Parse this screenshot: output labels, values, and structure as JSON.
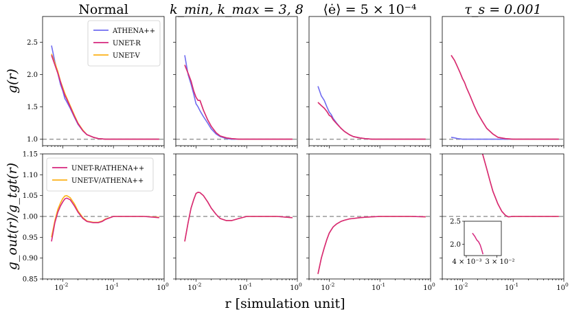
{
  "figure": {
    "xlabel": "r [simulation unit]",
    "ylabel_top": "g(r)",
    "ylabel_bottom": "g_out(r)/g_tgt(r)"
  },
  "colors": {
    "ATHENA++": "#6f6bf0",
    "UNET-R": "#d6267d",
    "UNET-V": "#fbb116",
    "reference": "#999999"
  },
  "chart_data": [
    {
      "type": "line",
      "panel": "top-1",
      "title": "Normal",
      "xscale": "log",
      "xlim": [
        0.004,
        1.0
      ],
      "ylim": [
        0.9,
        2.9
      ],
      "yticks": [
        1.0,
        1.5,
        2.0,
        2.5
      ],
      "xticks_labeled": false,
      "reference_line": 1.0,
      "legend": "top-right",
      "series": [
        {
          "name": "ATHENA++",
          "x": [
            0.006,
            0.007,
            0.008,
            0.009,
            0.01,
            0.011,
            0.012,
            0.014,
            0.017,
            0.02,
            0.025,
            0.03,
            0.04,
            0.05,
            0.07,
            0.1,
            0.2,
            0.4,
            0.8
          ],
          "y": [
            2.45,
            2.2,
            2.02,
            1.85,
            1.75,
            1.63,
            1.58,
            1.48,
            1.34,
            1.23,
            1.13,
            1.07,
            1.03,
            1.01,
            1.0,
            1.0,
            1.0,
            1.0,
            1.0
          ]
        },
        {
          "name": "UNET-R",
          "x": [
            0.006,
            0.007,
            0.008,
            0.009,
            0.01,
            0.011,
            0.012,
            0.014,
            0.017,
            0.02,
            0.025,
            0.03,
            0.04,
            0.05,
            0.07,
            0.1,
            0.2,
            0.4,
            0.8
          ],
          "y": [
            2.3,
            2.15,
            2.02,
            1.89,
            1.77,
            1.68,
            1.62,
            1.5,
            1.35,
            1.24,
            1.13,
            1.07,
            1.03,
            1.01,
            1.0,
            1.0,
            1.0,
            1.0,
            1.0
          ]
        },
        {
          "name": "UNET-V",
          "x": [
            0.006,
            0.007,
            0.008,
            0.009,
            0.01,
            0.011,
            0.012,
            0.014,
            0.017,
            0.02,
            0.025,
            0.03,
            0.04,
            0.05,
            0.07,
            0.1,
            0.2,
            0.4,
            0.8
          ],
          "y": [
            2.32,
            2.18,
            2.05,
            1.9,
            1.8,
            1.71,
            1.64,
            1.52,
            1.37,
            1.25,
            1.14,
            1.07,
            1.03,
            1.01,
            1.0,
            1.0,
            1.0,
            1.0,
            1.0
          ]
        }
      ]
    },
    {
      "type": "line",
      "panel": "top-2",
      "title": "k_min, k_max = 3, 8",
      "xscale": "log",
      "xlim": [
        0.004,
        1.0
      ],
      "ylim": [
        0.9,
        2.9
      ],
      "yticks": [
        1.0,
        1.5,
        2.0,
        2.5
      ],
      "xticks_labeled": false,
      "reference_line": 1.0,
      "series": [
        {
          "name": "ATHENA++",
          "x": [
            0.006,
            0.007,
            0.008,
            0.009,
            0.01,
            0.011,
            0.012,
            0.014,
            0.017,
            0.02,
            0.025,
            0.03,
            0.04,
            0.05,
            0.07,
            0.1,
            0.2,
            0.4,
            0.8
          ],
          "y": [
            2.3,
            2.0,
            1.85,
            1.7,
            1.55,
            1.5,
            1.44,
            1.35,
            1.25,
            1.16,
            1.08,
            1.04,
            1.01,
            1.0,
            1.0,
            1.0,
            1.0,
            1.0,
            1.0
          ]
        },
        {
          "name": "UNET-R",
          "x": [
            0.006,
            0.007,
            0.008,
            0.009,
            0.01,
            0.011,
            0.012,
            0.014,
            0.017,
            0.02,
            0.025,
            0.03,
            0.04,
            0.05,
            0.07,
            0.1,
            0.2,
            0.4,
            0.8
          ],
          "y": [
            2.15,
            2.02,
            1.9,
            1.75,
            1.65,
            1.6,
            1.6,
            1.45,
            1.3,
            1.2,
            1.1,
            1.05,
            1.02,
            1.01,
            1.0,
            1.0,
            1.0,
            1.0,
            1.0
          ]
        },
        {
          "name": "UNET-V",
          "x": [
            0.006,
            0.007,
            0.008,
            0.009,
            0.01,
            0.011,
            0.012,
            0.014,
            0.017,
            0.02,
            0.025,
            0.03,
            0.04,
            0.05,
            0.07,
            0.1,
            0.2,
            0.4,
            0.8
          ],
          "y": [
            2.15,
            2.02,
            1.9,
            1.75,
            1.65,
            1.6,
            1.6,
            1.45,
            1.3,
            1.2,
            1.1,
            1.05,
            1.02,
            1.01,
            1.0,
            1.0,
            1.0,
            1.0,
            1.0
          ]
        }
      ]
    },
    {
      "type": "line",
      "panel": "top-3",
      "title": "⟨ė⟩ = 5 × 10⁻⁴",
      "xscale": "log",
      "xlim": [
        0.004,
        1.0
      ],
      "ylim": [
        0.9,
        2.9
      ],
      "yticks": [
        1.0,
        1.5,
        2.0,
        2.5
      ],
      "xticks_labeled": false,
      "reference_line": 1.0,
      "series": [
        {
          "name": "ATHENA++",
          "x": [
            0.006,
            0.007,
            0.008,
            0.009,
            0.01,
            0.011,
            0.012,
            0.014,
            0.017,
            0.02,
            0.025,
            0.03,
            0.04,
            0.05,
            0.07,
            0.1,
            0.2,
            0.4,
            0.8
          ],
          "y": [
            1.82,
            1.67,
            1.6,
            1.5,
            1.42,
            1.38,
            1.32,
            1.25,
            1.17,
            1.12,
            1.07,
            1.04,
            1.02,
            1.01,
            1.0,
            1.0,
            1.0,
            1.0,
            1.0
          ]
        },
        {
          "name": "UNET-R",
          "x": [
            0.006,
            0.007,
            0.008,
            0.009,
            0.01,
            0.011,
            0.012,
            0.014,
            0.017,
            0.02,
            0.025,
            0.03,
            0.04,
            0.05,
            0.07,
            0.1,
            0.2,
            0.4,
            0.8
          ],
          "y": [
            1.57,
            1.52,
            1.48,
            1.43,
            1.37,
            1.35,
            1.3,
            1.24,
            1.17,
            1.12,
            1.07,
            1.04,
            1.02,
            1.01,
            1.0,
            1.0,
            1.0,
            1.0,
            1.0
          ]
        },
        {
          "name": "UNET-V",
          "x": [
            0.006,
            0.007,
            0.008,
            0.009,
            0.01,
            0.011,
            0.012,
            0.014,
            0.017,
            0.02,
            0.025,
            0.03,
            0.04,
            0.05,
            0.07,
            0.1,
            0.2,
            0.4,
            0.8
          ],
          "y": [
            1.57,
            1.52,
            1.48,
            1.43,
            1.37,
            1.35,
            1.3,
            1.24,
            1.17,
            1.12,
            1.07,
            1.04,
            1.02,
            1.01,
            1.0,
            1.0,
            1.0,
            1.0,
            1.0
          ]
        }
      ]
    },
    {
      "type": "line",
      "panel": "top-4",
      "title": "τ_s = 0.001",
      "xscale": "log",
      "xlim": [
        0.004,
        1.0
      ],
      "ylim": [
        0.9,
        2.9
      ],
      "yticks": [
        1.0,
        1.5,
        2.0,
        2.5
      ],
      "xticks_labeled": false,
      "reference_line": 1.0,
      "series": [
        {
          "name": "ATHENA++",
          "x": [
            0.006,
            0.007,
            0.008,
            0.01,
            0.015,
            0.02,
            0.05,
            0.1,
            0.3,
            0.8
          ],
          "y": [
            1.03,
            1.02,
            1.01,
            1.0,
            1.0,
            1.0,
            1.0,
            1.0,
            1.0,
            1.0
          ]
        },
        {
          "name": "UNET-R",
          "x": [
            0.006,
            0.007,
            0.008,
            0.009,
            0.01,
            0.011,
            0.012,
            0.014,
            0.017,
            0.02,
            0.025,
            0.03,
            0.04,
            0.05,
            0.07,
            0.1,
            0.2,
            0.4,
            0.8
          ],
          "y": [
            2.3,
            2.22,
            2.12,
            2.03,
            1.94,
            1.88,
            1.8,
            1.68,
            1.52,
            1.4,
            1.27,
            1.17,
            1.08,
            1.03,
            1.01,
            1.0,
            1.0,
            1.0,
            1.0
          ]
        },
        {
          "name": "UNET-V",
          "x": [
            0.006,
            0.007,
            0.008,
            0.009,
            0.01,
            0.011,
            0.012,
            0.014,
            0.017,
            0.02,
            0.025,
            0.03,
            0.04,
            0.05,
            0.07,
            0.1,
            0.2,
            0.4,
            0.8
          ],
          "y": [
            2.3,
            2.22,
            2.12,
            2.03,
            1.94,
            1.88,
            1.8,
            1.68,
            1.52,
            1.4,
            1.27,
            1.17,
            1.08,
            1.03,
            1.01,
            1.0,
            1.0,
            1.0,
            1.0
          ]
        }
      ]
    },
    {
      "type": "line",
      "panel": "bottom-1",
      "xscale": "log",
      "xlim": [
        0.004,
        1.0
      ],
      "ylim": [
        0.85,
        1.15
      ],
      "yticks": [
        0.85,
        0.9,
        0.95,
        1.0,
        1.05,
        1.1,
        1.15
      ],
      "xticks_labeled": true,
      "reference_line": 1.0,
      "legend": "top-left",
      "series": [
        {
          "name": "UNET-R/ATHENA++",
          "x": [
            0.006,
            0.007,
            0.008,
            0.009,
            0.01,
            0.011,
            0.012,
            0.014,
            0.017,
            0.02,
            0.025,
            0.03,
            0.04,
            0.05,
            0.06,
            0.07,
            0.1,
            0.15,
            0.2,
            0.4,
            0.8
          ],
          "y": [
            0.94,
            0.985,
            1.01,
            1.025,
            1.035,
            1.042,
            1.044,
            1.04,
            1.025,
            1.01,
            0.995,
            0.988,
            0.985,
            0.985,
            0.988,
            0.993,
            1.0,
            1.0,
            1.0,
            1.0,
            0.997
          ]
        },
        {
          "name": "UNET-V/ATHENA++",
          "x": [
            0.006,
            0.007,
            0.008,
            0.009,
            0.01,
            0.011,
            0.012,
            0.014,
            0.017,
            0.02,
            0.025,
            0.03,
            0.04,
            0.05,
            0.06,
            0.07,
            0.1,
            0.15,
            0.2,
            0.4,
            0.8
          ],
          "y": [
            0.95,
            0.99,
            1.017,
            1.032,
            1.043,
            1.049,
            1.05,
            1.045,
            1.03,
            1.013,
            0.997,
            0.989,
            0.986,
            0.986,
            0.989,
            0.994,
            1.0,
            1.0,
            1.0,
            1.0,
            0.998
          ]
        }
      ]
    },
    {
      "type": "line",
      "panel": "bottom-2",
      "xscale": "log",
      "xlim": [
        0.004,
        1.0
      ],
      "ylim": [
        0.85,
        1.15
      ],
      "yticks": [
        0.85,
        0.9,
        0.95,
        1.0,
        1.05,
        1.1,
        1.15
      ],
      "xticks_labeled": true,
      "reference_line": 1.0,
      "series": [
        {
          "name": "UNET-R/ATHENA++",
          "x": [
            0.006,
            0.007,
            0.008,
            0.009,
            0.01,
            0.011,
            0.012,
            0.014,
            0.017,
            0.02,
            0.025,
            0.03,
            0.04,
            0.05,
            0.07,
            0.1,
            0.15,
            0.2,
            0.4,
            0.8
          ],
          "y": [
            0.94,
            0.985,
            1.02,
            1.04,
            1.055,
            1.058,
            1.057,
            1.05,
            1.035,
            1.02,
            1.005,
            0.995,
            0.99,
            0.99,
            0.995,
            1.0,
            1.0,
            1.0,
            1.0,
            0.997
          ]
        },
        {
          "name": "UNET-V/ATHENA++",
          "x": [
            0.006,
            0.007,
            0.008,
            0.009,
            0.01,
            0.011,
            0.012,
            0.014,
            0.017,
            0.02,
            0.025,
            0.03,
            0.04,
            0.05,
            0.07,
            0.1,
            0.15,
            0.2,
            0.4,
            0.8
          ],
          "y": [
            0.94,
            0.985,
            1.02,
            1.04,
            1.055,
            1.058,
            1.057,
            1.05,
            1.035,
            1.02,
            1.005,
            0.995,
            0.99,
            0.99,
            0.995,
            1.0,
            1.0,
            1.0,
            1.0,
            0.997
          ]
        }
      ]
    },
    {
      "type": "line",
      "panel": "bottom-3",
      "xscale": "log",
      "xlim": [
        0.004,
        1.0
      ],
      "ylim": [
        0.85,
        1.15
      ],
      "yticks": [
        0.85,
        0.9,
        0.95,
        1.0,
        1.05,
        1.1,
        1.15
      ],
      "xticks_labeled": true,
      "reference_line": 1.0,
      "series": [
        {
          "name": "UNET-R/ATHENA++",
          "x": [
            0.006,
            0.007,
            0.008,
            0.009,
            0.01,
            0.011,
            0.012,
            0.014,
            0.017,
            0.02,
            0.025,
            0.03,
            0.04,
            0.05,
            0.07,
            0.1,
            0.15,
            0.2,
            0.4,
            0.8
          ],
          "y": [
            0.862,
            0.9,
            0.925,
            0.945,
            0.96,
            0.968,
            0.975,
            0.982,
            0.988,
            0.991,
            0.994,
            0.995,
            0.997,
            0.998,
            0.999,
            1.0,
            1.0,
            1.0,
            1.0,
            0.999
          ]
        },
        {
          "name": "UNET-V/ATHENA++",
          "x": [
            0.006,
            0.007,
            0.008,
            0.009,
            0.01,
            0.011,
            0.012,
            0.014,
            0.017,
            0.02,
            0.025,
            0.03,
            0.04,
            0.05,
            0.07,
            0.1,
            0.15,
            0.2,
            0.4,
            0.8
          ],
          "y": [
            0.862,
            0.9,
            0.925,
            0.945,
            0.96,
            0.968,
            0.975,
            0.982,
            0.988,
            0.991,
            0.994,
            0.995,
            0.997,
            0.998,
            0.999,
            1.0,
            1.0,
            1.0,
            1.0,
            0.999
          ]
        }
      ]
    },
    {
      "type": "line",
      "panel": "bottom-4",
      "xscale": "log",
      "xlim": [
        0.004,
        1.0
      ],
      "ylim": [
        0.85,
        1.15
      ],
      "yticks": [
        0.85,
        0.9,
        0.95,
        1.0,
        1.05,
        1.1,
        1.15
      ],
      "xticks_labeled": true,
      "reference_line": 1.0,
      "series": [
        {
          "name": "UNET-R/ATHENA++",
          "x": [
            0.025,
            0.03,
            0.035,
            0.04,
            0.05,
            0.06,
            0.07,
            0.08,
            0.1,
            0.15,
            0.2,
            0.4,
            0.8
          ],
          "y": [
            1.15,
            1.115,
            1.085,
            1.06,
            1.03,
            1.012,
            1.003,
            0.999,
            1.0,
            1.0,
            1.0,
            1.0,
            1.0
          ]
        },
        {
          "name": "UNET-V/ATHENA++",
          "x": [
            0.025,
            0.03,
            0.035,
            0.04,
            0.05,
            0.06,
            0.07,
            0.08,
            0.1,
            0.15,
            0.2,
            0.4,
            0.8
          ],
          "y": [
            1.15,
            1.115,
            1.085,
            1.06,
            1.03,
            1.012,
            1.003,
            0.999,
            1.0,
            1.0,
            1.0,
            1.0,
            1.0
          ]
        }
      ],
      "inset": {
        "xscale": "log",
        "xlim": [
          0.0035,
          0.04
        ],
        "ylim": [
          1.75,
          2.5
        ],
        "yticks": [
          2.0,
          2.5
        ],
        "xtick_labels": [
          "4 × 10⁻³",
          "3 × 10⁻²"
        ],
        "series": [
          {
            "name": "UNET-R/ATHENA++",
            "x": [
              0.006,
              0.007,
              0.008,
              0.009,
              0.01,
              0.011,
              0.012
            ],
            "y": [
              2.24,
              2.17,
              2.09,
              2.05,
              1.98,
              1.88,
              1.78
            ]
          }
        ]
      }
    }
  ]
}
